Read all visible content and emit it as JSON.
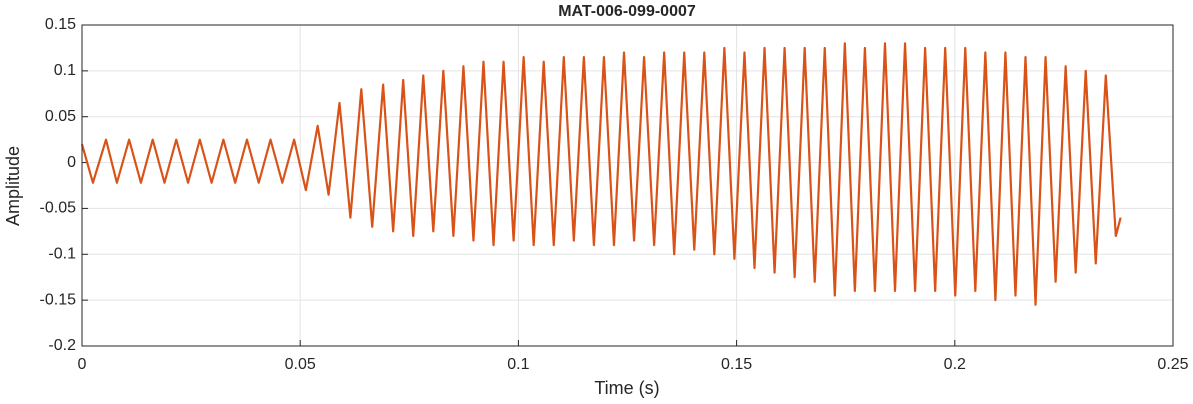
{
  "chart_data": {
    "type": "line",
    "title": "MAT-006-099-0007",
    "xlabel": "Time (s)",
    "ylabel": "Amplitude",
    "x": [
      0,
      0.0025,
      0.0055,
      0.008,
      0.0108,
      0.0135,
      0.0162,
      0.0189,
      0.0216,
      0.0243,
      0.027,
      0.0297,
      0.0324,
      0.0351,
      0.0378,
      0.0405,
      0.0432,
      0.0459,
      0.0486,
      0.0513,
      0.054,
      0.0565,
      0.059,
      0.0615,
      0.064,
      0.0665,
      0.069,
      0.0713,
      0.0736,
      0.0759,
      0.0782,
      0.0805,
      0.0828,
      0.0851,
      0.0874,
      0.0897,
      0.092,
      0.0943,
      0.0966,
      0.0989,
      0.1012,
      0.1035,
      0.1058,
      0.1081,
      0.1104,
      0.1127,
      0.115,
      0.1173,
      0.1196,
      0.1219,
      0.1242,
      0.1265,
      0.1288,
      0.1311,
      0.1334,
      0.1357,
      0.138,
      0.1403,
      0.1426,
      0.1449,
      0.1472,
      0.1495,
      0.1518,
      0.1541,
      0.1564,
      0.1587,
      0.161,
      0.1633,
      0.1656,
      0.1679,
      0.1702,
      0.1725,
      0.1748,
      0.1771,
      0.1794,
      0.1817,
      0.184,
      0.1863,
      0.1886,
      0.1909,
      0.1932,
      0.1955,
      0.1978,
      0.2001,
      0.2024,
      0.2047,
      0.207,
      0.2093,
      0.2116,
      0.2139,
      0.2162,
      0.2185,
      0.2208,
      0.2231,
      0.2254,
      0.2277,
      0.23,
      0.2323,
      0.2346,
      0.2369,
      0.238
    ],
    "values": [
      0.02,
      -0.022,
      0.025,
      -0.022,
      0.025,
      -0.022,
      0.025,
      -0.022,
      0.025,
      -0.022,
      0.025,
      -0.022,
      0.025,
      -0.022,
      0.025,
      -0.022,
      0.025,
      -0.022,
      0.025,
      -0.03,
      0.04,
      -0.035,
      0.065,
      -0.06,
      0.08,
      -0.07,
      0.085,
      -0.075,
      0.09,
      -0.08,
      0.095,
      -0.075,
      0.1,
      -0.08,
      0.105,
      -0.085,
      0.11,
      -0.09,
      0.11,
      -0.085,
      0.115,
      -0.09,
      0.11,
      -0.09,
      0.115,
      -0.085,
      0.115,
      -0.09,
      0.115,
      -0.09,
      0.12,
      -0.085,
      0.115,
      -0.09,
      0.12,
      -0.1,
      0.12,
      -0.095,
      0.12,
      -0.1,
      0.125,
      -0.105,
      0.12,
      -0.115,
      0.125,
      -0.12,
      0.125,
      -0.125,
      0.125,
      -0.13,
      0.125,
      -0.145,
      0.13,
      -0.14,
      0.125,
      -0.14,
      0.13,
      -0.14,
      0.13,
      -0.14,
      0.125,
      -0.14,
      0.125,
      -0.145,
      0.125,
      -0.14,
      0.12,
      -0.15,
      0.12,
      -0.145,
      0.115,
      -0.155,
      0.115,
      -0.13,
      0.105,
      -0.12,
      0.1,
      -0.11,
      0.095,
      -0.08,
      -0.06
    ],
    "color": "#d95319",
    "xlim": [
      0,
      0.25
    ],
    "xticks": [
      0,
      0.05,
      0.1,
      0.15,
      0.2,
      0.25
    ],
    "ylim": [
      -0.2,
      0.15
    ],
    "yticks": [
      -0.2,
      -0.15,
      -0.1,
      -0.05,
      0,
      0.05,
      0.1,
      0.15
    ],
    "grid": true
  }
}
